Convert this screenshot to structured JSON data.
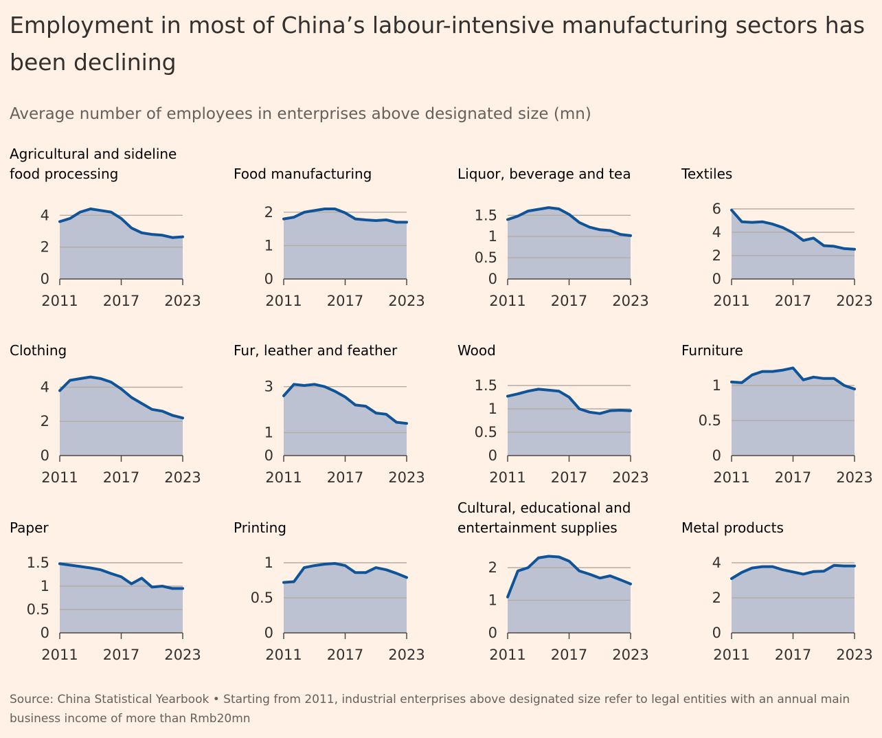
{
  "title": "Employment in most of China’s labour-intensive manufacturing sectors has been declining",
  "subtitle": "Average number of employees in enterprises above designated size (mn)",
  "source": "Source: China Statistical Yearbook • Starting from 2011, industrial enterprises above designated size refer to legal entities with an annual main business income of more than Rmb20mn",
  "colors": {
    "background": "#fff1e5",
    "line": "#0f5499",
    "area": "#bcc2d1",
    "grid": "#b5aca4",
    "text": "#33302e"
  },
  "chart_data": [
    {
      "type": "area",
      "title": "Agricultural and sideline food processing",
      "x": [
        2011,
        2012,
        2013,
        2014,
        2015,
        2016,
        2017,
        2018,
        2019,
        2020,
        2021,
        2022,
        2023
      ],
      "y": [
        3.6,
        3.8,
        4.2,
        4.4,
        4.3,
        4.2,
        3.8,
        3.2,
        2.9,
        2.8,
        2.75,
        2.6,
        2.65
      ],
      "yticks": [
        0,
        2,
        4
      ],
      "xticks": [
        "2011",
        "2017",
        "2023"
      ],
      "ylim": [
        0,
        4.4
      ]
    },
    {
      "type": "area",
      "title": "Food manufacturing",
      "x": [
        2011,
        2012,
        2013,
        2014,
        2015,
        2016,
        2017,
        2018,
        2019,
        2020,
        2021,
        2022,
        2023
      ],
      "y": [
        1.8,
        1.85,
        2.0,
        2.05,
        2.1,
        2.1,
        1.98,
        1.8,
        1.77,
        1.75,
        1.77,
        1.7,
        1.7
      ],
      "yticks": [
        0,
        1,
        2
      ],
      "xticks": [
        "2011",
        "2017",
        "2023"
      ],
      "ylim": [
        0,
        2.1
      ]
    },
    {
      "type": "area",
      "title": "Liquor, beverage and tea",
      "x": [
        2011,
        2012,
        2013,
        2014,
        2015,
        2016,
        2017,
        2018,
        2019,
        2020,
        2021,
        2022,
        2023
      ],
      "y": [
        1.4,
        1.48,
        1.6,
        1.64,
        1.68,
        1.65,
        1.52,
        1.33,
        1.22,
        1.16,
        1.14,
        1.05,
        1.02
      ],
      "yticks": [
        0,
        0.5,
        1,
        1.5
      ],
      "xticks": [
        "2011",
        "2017",
        "2023"
      ],
      "ylim": [
        0,
        1.65
      ]
    },
    {
      "type": "area",
      "title": "Textiles",
      "x": [
        2011,
        2012,
        2013,
        2014,
        2015,
        2016,
        2017,
        2018,
        2019,
        2020,
        2021,
        2022,
        2023
      ],
      "y": [
        5.9,
        4.9,
        4.85,
        4.9,
        4.7,
        4.4,
        3.95,
        3.3,
        3.5,
        2.85,
        2.8,
        2.6,
        2.55
      ],
      "yticks": [
        0,
        2,
        4,
        6
      ],
      "xticks": [
        "2011",
        "2017",
        "2023"
      ],
      "ylim": [
        0,
        6
      ]
    },
    {
      "type": "area",
      "title": "Clothing",
      "x": [
        2011,
        2012,
        2013,
        2014,
        2015,
        2016,
        2017,
        2018,
        2019,
        2020,
        2021,
        2022,
        2023
      ],
      "y": [
        3.8,
        4.4,
        4.5,
        4.6,
        4.5,
        4.3,
        3.9,
        3.4,
        3.05,
        2.7,
        2.6,
        2.35,
        2.2
      ],
      "yticks": [
        0,
        2,
        4
      ],
      "xticks": [
        "2011",
        "2017",
        "2023"
      ],
      "ylim": [
        0,
        4.1
      ]
    },
    {
      "type": "area",
      "title": "Fur, leather and feather",
      "x": [
        2011,
        2012,
        2013,
        2014,
        2015,
        2016,
        2017,
        2018,
        2019,
        2020,
        2021,
        2022,
        2023
      ],
      "y": [
        2.6,
        3.1,
        3.05,
        3.1,
        3.0,
        2.8,
        2.55,
        2.2,
        2.15,
        1.85,
        1.8,
        1.45,
        1.4
      ],
      "yticks": [
        0,
        1,
        3
      ],
      "xticks": [
        "2011",
        "2017",
        "2023"
      ],
      "ylim": [
        0,
        3.05
      ]
    },
    {
      "type": "area",
      "title": "Wood",
      "x": [
        2011,
        2012,
        2013,
        2014,
        2015,
        2016,
        2017,
        2018,
        2019,
        2020,
        2021,
        2022,
        2023
      ],
      "y": [
        1.27,
        1.32,
        1.38,
        1.42,
        1.4,
        1.38,
        1.25,
        1.0,
        0.93,
        0.9,
        0.96,
        0.97,
        0.96
      ],
      "yticks": [
        0,
        0.5,
        1,
        1.5
      ],
      "xticks": [
        "2011",
        "2017",
        "2023"
      ],
      "ylim": [
        0,
        1.5
      ]
    },
    {
      "type": "area",
      "title": "Furniture",
      "x": [
        2011,
        2012,
        2013,
        2014,
        2015,
        2016,
        2017,
        2018,
        2019,
        2020,
        2021,
        2022,
        2023
      ],
      "y": [
        1.05,
        1.04,
        1.15,
        1.2,
        1.2,
        1.22,
        1.25,
        1.08,
        1.12,
        1.1,
        1.1,
        1.0,
        0.95
      ],
      "yticks": [
        0,
        0.5,
        1
      ],
      "xticks": [
        "2011",
        "2017",
        "2023"
      ],
      "ylim": [
        0,
        1.0
      ]
    },
    {
      "type": "area",
      "title": "Paper",
      "x": [
        2011,
        2012,
        2013,
        2014,
        2015,
        2016,
        2017,
        2018,
        2019,
        2020,
        2021,
        2022,
        2023
      ],
      "y": [
        1.48,
        1.45,
        1.42,
        1.39,
        1.35,
        1.27,
        1.2,
        1.05,
        1.17,
        0.98,
        1.0,
        0.95,
        0.95
      ],
      "yticks": [
        0,
        0.5,
        1,
        1.5
      ],
      "xticks": [
        "2011",
        "2017",
        "2023"
      ],
      "ylim": [
        0,
        1.5
      ]
    },
    {
      "type": "area",
      "title": "Printing",
      "x": [
        2011,
        2012,
        2013,
        2014,
        2015,
        2016,
        2017,
        2018,
        2019,
        2020,
        2021,
        2022,
        2023
      ],
      "y": [
        0.72,
        0.73,
        0.93,
        0.96,
        0.98,
        0.99,
        0.96,
        0.86,
        0.86,
        0.93,
        0.9,
        0.85,
        0.79
      ],
      "yticks": [
        0,
        0.5,
        1
      ],
      "xticks": [
        "2011",
        "2017",
        "2023"
      ],
      "ylim": [
        0,
        1.0
      ]
    },
    {
      "type": "area",
      "title": "Cultural, educational and entertainment supplies",
      "x": [
        2011,
        2012,
        2013,
        2014,
        2015,
        2016,
        2017,
        2018,
        2019,
        2020,
        2021,
        2022,
        2023
      ],
      "y": [
        1.1,
        1.9,
        2.0,
        2.3,
        2.35,
        2.33,
        2.2,
        1.9,
        1.8,
        1.68,
        1.75,
        1.63,
        1.5
      ],
      "yticks": [
        0,
        1,
        2
      ],
      "xticks": [
        "2011",
        "2017",
        "2023"
      ],
      "ylim": [
        0,
        2.15
      ]
    },
    {
      "type": "area",
      "title": "Metal products",
      "x": [
        2011,
        2012,
        2013,
        2014,
        2015,
        2016,
        2017,
        2018,
        2019,
        2020,
        2021,
        2022,
        2023
      ],
      "y": [
        3.1,
        3.45,
        3.7,
        3.78,
        3.78,
        3.6,
        3.48,
        3.35,
        3.5,
        3.52,
        3.85,
        3.82,
        3.82
      ],
      "yticks": [
        0,
        2,
        4
      ],
      "xticks": [
        "2011",
        "2017",
        "2023"
      ],
      "ylim": [
        0,
        4.0
      ]
    }
  ]
}
